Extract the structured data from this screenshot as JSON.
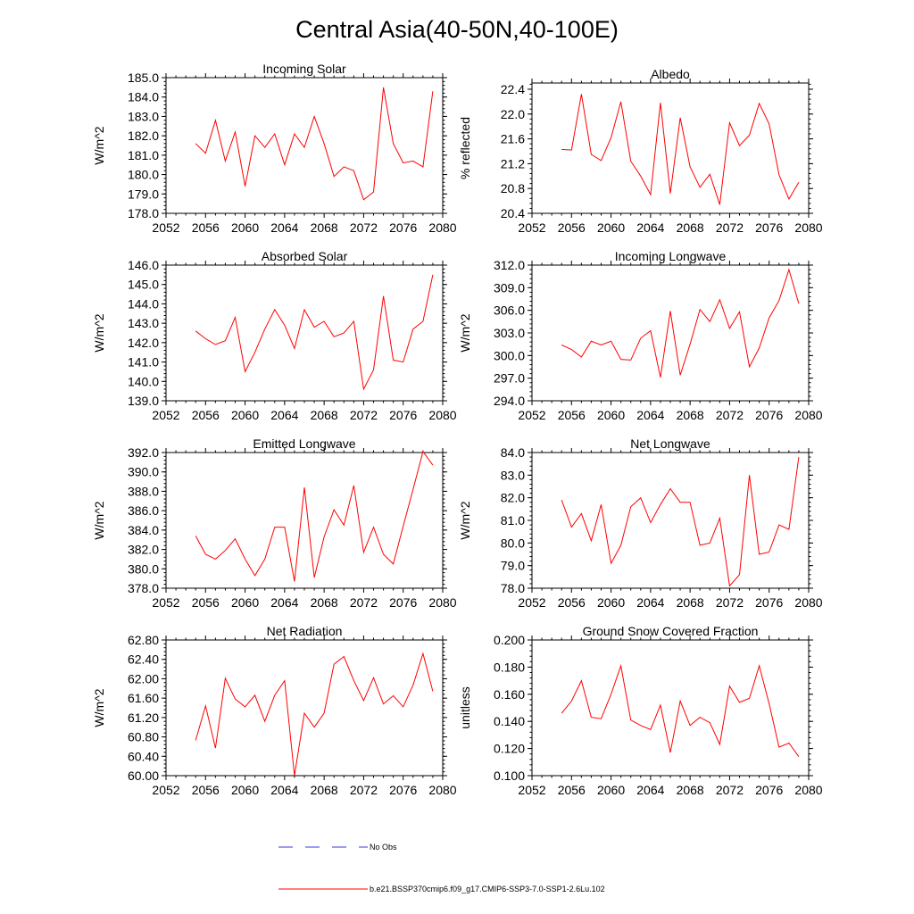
{
  "figure_title": "Central Asia(40-50N,40-100E)",
  "legend": {
    "entries": [
      {
        "label": "No Obs",
        "color": "#3b3bd6",
        "style": "dashed"
      },
      {
        "label": "b.e21.BSSP370cmip6.f09_g17.CMIP6-SSP3-7.0-SSP1-2.6Lu.102",
        "color": "#ff0000",
        "style": "solid"
      }
    ]
  },
  "colors": {
    "series": "#ff0000"
  },
  "chart_data": [
    {
      "type": "line",
      "title": "Incoming Solar",
      "xlabel": "",
      "ylabel": "W/m^2",
      "xlim": [
        2052,
        2080
      ],
      "ylim": [
        178.0,
        185.0
      ],
      "xticks": [
        "2052",
        "2056",
        "2060",
        "2064",
        "2068",
        "2072",
        "2076",
        "2080"
      ],
      "yticks": [
        "178.0",
        "179.0",
        "180.0",
        "181.0",
        "182.0",
        "183.0",
        "184.0",
        "185.0"
      ],
      "x": [
        2055,
        2056,
        2057,
        2058,
        2059,
        2060,
        2061,
        2062,
        2063,
        2064,
        2065,
        2066,
        2067,
        2068,
        2069,
        2070,
        2071,
        2072,
        2073,
        2074,
        2075,
        2076,
        2077,
        2078,
        2079
      ],
      "values": [
        181.6,
        181.1,
        182.8,
        180.7,
        182.2,
        179.4,
        182.0,
        181.4,
        182.1,
        180.5,
        182.1,
        181.4,
        183.0,
        181.6,
        179.9,
        180.4,
        180.2,
        178.7,
        179.1,
        184.5,
        181.6,
        180.6,
        180.7,
        180.4,
        184.3
      ]
    },
    {
      "type": "line",
      "title": "Albedo",
      "xlabel": "",
      "ylabel": "% reflected",
      "xlim": [
        2052,
        2080
      ],
      "ylim": [
        20.4,
        22.5
      ],
      "xticks": [
        "2052",
        "2056",
        "2060",
        "2064",
        "2068",
        "2072",
        "2076",
        "2080"
      ],
      "yticks": [
        "20.4",
        "20.8",
        "21.2",
        "21.6",
        "22.0",
        "22.4"
      ],
      "x": [
        2055,
        2056,
        2057,
        2058,
        2059,
        2060,
        2061,
        2062,
        2063,
        2064,
        2065,
        2066,
        2067,
        2068,
        2069,
        2070,
        2071,
        2072,
        2073,
        2074,
        2075,
        2076,
        2077,
        2078,
        2079
      ],
      "values": [
        21.43,
        21.42,
        22.32,
        21.35,
        21.25,
        21.62,
        22.2,
        21.24,
        21.0,
        20.7,
        22.18,
        20.72,
        21.94,
        21.15,
        20.82,
        21.03,
        20.54,
        21.86,
        21.49,
        21.66,
        22.17,
        21.84,
        21.02,
        20.63,
        20.9
      ]
    },
    {
      "type": "line",
      "title": "Absorbed Solar",
      "xlabel": "",
      "ylabel": "W/m^2",
      "xlim": [
        2052,
        2080
      ],
      "ylim": [
        139.0,
        146.0
      ],
      "xticks": [
        "2052",
        "2056",
        "2060",
        "2064",
        "2068",
        "2072",
        "2076",
        "2080"
      ],
      "yticks": [
        "139.0",
        "140.0",
        "141.0",
        "142.0",
        "143.0",
        "144.0",
        "145.0",
        "146.0"
      ],
      "x": [
        2055,
        2056,
        2057,
        2058,
        2059,
        2060,
        2061,
        2062,
        2063,
        2064,
        2065,
        2066,
        2067,
        2068,
        2069,
        2070,
        2071,
        2072,
        2073,
        2074,
        2075,
        2076,
        2077,
        2078,
        2079
      ],
      "values": [
        142.6,
        142.2,
        141.9,
        142.1,
        143.3,
        140.5,
        141.5,
        142.7,
        143.7,
        142.9,
        141.7,
        143.7,
        142.8,
        143.1,
        142.3,
        142.5,
        143.1,
        139.6,
        140.6,
        144.4,
        141.1,
        141.0,
        142.7,
        143.1,
        145.5
      ]
    },
    {
      "type": "line",
      "title": "Incoming Longwave",
      "xlabel": "",
      "ylabel": "W/m^2",
      "xlim": [
        2052,
        2080
      ],
      "ylim": [
        294.0,
        312.0
      ],
      "xticks": [
        "2052",
        "2056",
        "2060",
        "2064",
        "2068",
        "2072",
        "2076",
        "2080"
      ],
      "yticks": [
        "294.0",
        "297.0",
        "300.0",
        "303.0",
        "306.0",
        "309.0",
        "312.0"
      ],
      "x": [
        2055,
        2056,
        2057,
        2058,
        2059,
        2060,
        2061,
        2062,
        2063,
        2064,
        2065,
        2066,
        2067,
        2068,
        2069,
        2070,
        2071,
        2072,
        2073,
        2074,
        2075,
        2076,
        2077,
        2078,
        2079
      ],
      "values": [
        301.4,
        300.8,
        299.8,
        301.9,
        301.4,
        301.9,
        299.5,
        299.4,
        302.3,
        303.3,
        297.1,
        305.9,
        297.4,
        301.5,
        306.1,
        304.5,
        307.4,
        303.6,
        305.8,
        298.5,
        301.0,
        305.0,
        307.3,
        311.4,
        306.9
      ]
    },
    {
      "type": "line",
      "title": "Emitted Longwave",
      "xlabel": "",
      "ylabel": "W/m^2",
      "xlim": [
        2052,
        2080
      ],
      "ylim": [
        378.0,
        392.0
      ],
      "xticks": [
        "2052",
        "2056",
        "2060",
        "2064",
        "2068",
        "2072",
        "2076",
        "2080"
      ],
      "yticks": [
        "378.0",
        "380.0",
        "382.0",
        "384.0",
        "386.0",
        "388.0",
        "390.0",
        "392.0"
      ],
      "x": [
        2055,
        2056,
        2057,
        2058,
        2059,
        2060,
        2061,
        2062,
        2063,
        2064,
        2065,
        2066,
        2067,
        2068,
        2069,
        2070,
        2071,
        2072,
        2073,
        2074,
        2075,
        2076,
        2077,
        2078,
        2079
      ],
      "values": [
        383.4,
        381.5,
        381.0,
        381.9,
        383.1,
        381.0,
        379.3,
        381.0,
        384.3,
        384.3,
        378.7,
        388.4,
        379.1,
        383.3,
        386.1,
        384.5,
        388.6,
        381.7,
        384.3,
        381.5,
        380.5,
        384.4,
        388.2,
        392.1,
        390.7
      ]
    },
    {
      "type": "line",
      "title": "Net Longwave",
      "xlabel": "",
      "ylabel": "W/m^2",
      "xlim": [
        2052,
        2080
      ],
      "ylim": [
        78.0,
        84.0
      ],
      "xticks": [
        "2052",
        "2056",
        "2060",
        "2064",
        "2068",
        "2072",
        "2076",
        "2080"
      ],
      "yticks": [
        "78.0",
        "79.0",
        "80.0",
        "81.0",
        "82.0",
        "83.0",
        "84.0"
      ],
      "x": [
        2055,
        2056,
        2057,
        2058,
        2059,
        2060,
        2061,
        2062,
        2063,
        2064,
        2065,
        2066,
        2067,
        2068,
        2069,
        2070,
        2071,
        2072,
        2073,
        2074,
        2075,
        2076,
        2077,
        2078,
        2079
      ],
      "values": [
        81.9,
        80.7,
        81.3,
        80.1,
        81.7,
        79.1,
        79.9,
        81.6,
        82.0,
        80.9,
        81.7,
        82.4,
        81.8,
        81.8,
        79.9,
        80.0,
        81.1,
        78.1,
        78.6,
        83.0,
        79.5,
        79.6,
        80.8,
        80.6,
        83.8
      ]
    },
    {
      "type": "line",
      "title": "Net Radiation",
      "xlabel": "",
      "ylabel": "W/m^2",
      "xlim": [
        2052,
        2080
      ],
      "ylim": [
        60.0,
        62.8
      ],
      "xticks": [
        "2052",
        "2056",
        "2060",
        "2064",
        "2068",
        "2072",
        "2076",
        "2080"
      ],
      "yticks": [
        "60.00",
        "60.40",
        "60.80",
        "61.20",
        "61.60",
        "62.00",
        "62.40",
        "62.80"
      ],
      "x": [
        2055,
        2056,
        2057,
        2058,
        2059,
        2060,
        2061,
        2062,
        2063,
        2064,
        2065,
        2066,
        2067,
        2068,
        2069,
        2070,
        2071,
        2072,
        2073,
        2074,
        2075,
        2076,
        2077,
        2078,
        2079
      ],
      "values": [
        60.73,
        61.44,
        60.57,
        62.01,
        61.58,
        61.42,
        61.66,
        61.12,
        61.66,
        61.96,
        60.0,
        61.29,
        61.0,
        61.29,
        62.3,
        62.46,
        61.96,
        61.55,
        62.02,
        61.48,
        61.65,
        61.42,
        61.87,
        62.52,
        61.74
      ]
    },
    {
      "type": "line",
      "title": "Ground Snow Covered Fraction",
      "xlabel": "",
      "ylabel": "unitless",
      "xlim": [
        2052,
        2080
      ],
      "ylim": [
        0.1,
        0.2
      ],
      "xticks": [
        "2052",
        "2056",
        "2060",
        "2064",
        "2068",
        "2072",
        "2076",
        "2080"
      ],
      "yticks": [
        "0.100",
        "0.120",
        "0.140",
        "0.160",
        "0.180",
        "0.200"
      ],
      "x": [
        2055,
        2056,
        2057,
        2058,
        2059,
        2060,
        2061,
        2062,
        2063,
        2064,
        2065,
        2066,
        2067,
        2068,
        2069,
        2070,
        2071,
        2072,
        2073,
        2074,
        2075,
        2076,
        2077,
        2078,
        2079
      ],
      "values": [
        0.146,
        0.155,
        0.17,
        0.143,
        0.142,
        0.16,
        0.181,
        0.141,
        0.137,
        0.134,
        0.152,
        0.117,
        0.155,
        0.137,
        0.143,
        0.139,
        0.123,
        0.166,
        0.154,
        0.157,
        0.181,
        0.153,
        0.121,
        0.124,
        0.114
      ]
    }
  ]
}
